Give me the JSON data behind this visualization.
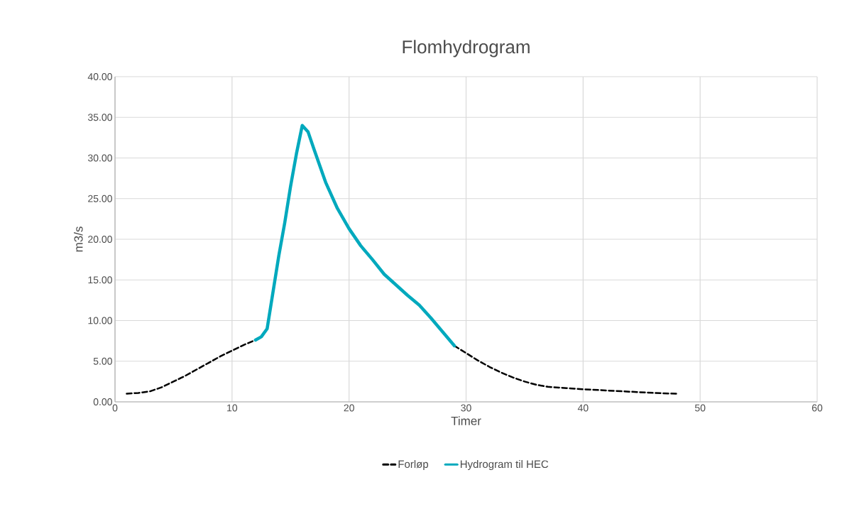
{
  "chart_data": {
    "type": "line",
    "title": "Flomhydrogram",
    "xlabel": "Timer",
    "ylabel": "m3/s",
    "xlim": [
      0,
      60
    ],
    "xticks": [
      0,
      10,
      20,
      30,
      40,
      50,
      60
    ],
    "ylim": [
      0,
      40
    ],
    "yticks": [
      {
        "value": 0,
        "label": "0.00"
      },
      {
        "value": 5,
        "label": "5.00"
      },
      {
        "value": 10,
        "label": "10.00"
      },
      {
        "value": 15,
        "label": "15.00"
      },
      {
        "value": 20,
        "label": "20.00"
      },
      {
        "value": 25,
        "label": "25.00"
      },
      {
        "value": 30,
        "label": "30.00"
      },
      {
        "value": 35,
        "label": "35.00"
      },
      {
        "value": 40,
        "label": "40.00"
      }
    ],
    "grid": true,
    "legend": "bottom",
    "marker": "none",
    "series": [
      {
        "name": "Forløp",
        "color": "#000000",
        "line_style": "dashed",
        "x": [
          1,
          2,
          3,
          4,
          5,
          6,
          7,
          8,
          9,
          10,
          11,
          12,
          20,
          29,
          30,
          31,
          32,
          33,
          34,
          35,
          36,
          37,
          38,
          39,
          40,
          42,
          44,
          46,
          48
        ],
        "values": [
          1.0,
          1.1,
          1.3,
          1.8,
          2.5,
          3.2,
          4.0,
          4.8,
          5.6,
          6.3,
          7.0,
          7.6,
          null,
          6.9,
          6.0,
          5.1,
          4.3,
          3.6,
          3.0,
          2.5,
          2.1,
          1.85,
          1.75,
          1.65,
          1.55,
          1.4,
          1.25,
          1.1,
          1.0
        ]
      },
      {
        "name": "Hydrogram til HEC",
        "color": "#00a9bd",
        "line_style": "solid",
        "x": [
          12,
          12.5,
          13,
          13.5,
          14,
          14.5,
          15,
          15.5,
          16,
          16.5,
          17,
          18,
          19,
          20,
          21,
          22,
          23,
          24,
          25,
          26,
          27,
          28,
          29
        ],
        "values": [
          7.6,
          8.0,
          9.0,
          13.5,
          18.0,
          22.0,
          26.5,
          30.5,
          34.0,
          33.2,
          31.1,
          27.0,
          23.8,
          21.3,
          19.2,
          17.5,
          15.7,
          14.4,
          13.1,
          11.9,
          10.3,
          8.6,
          6.9
        ]
      }
    ]
  }
}
